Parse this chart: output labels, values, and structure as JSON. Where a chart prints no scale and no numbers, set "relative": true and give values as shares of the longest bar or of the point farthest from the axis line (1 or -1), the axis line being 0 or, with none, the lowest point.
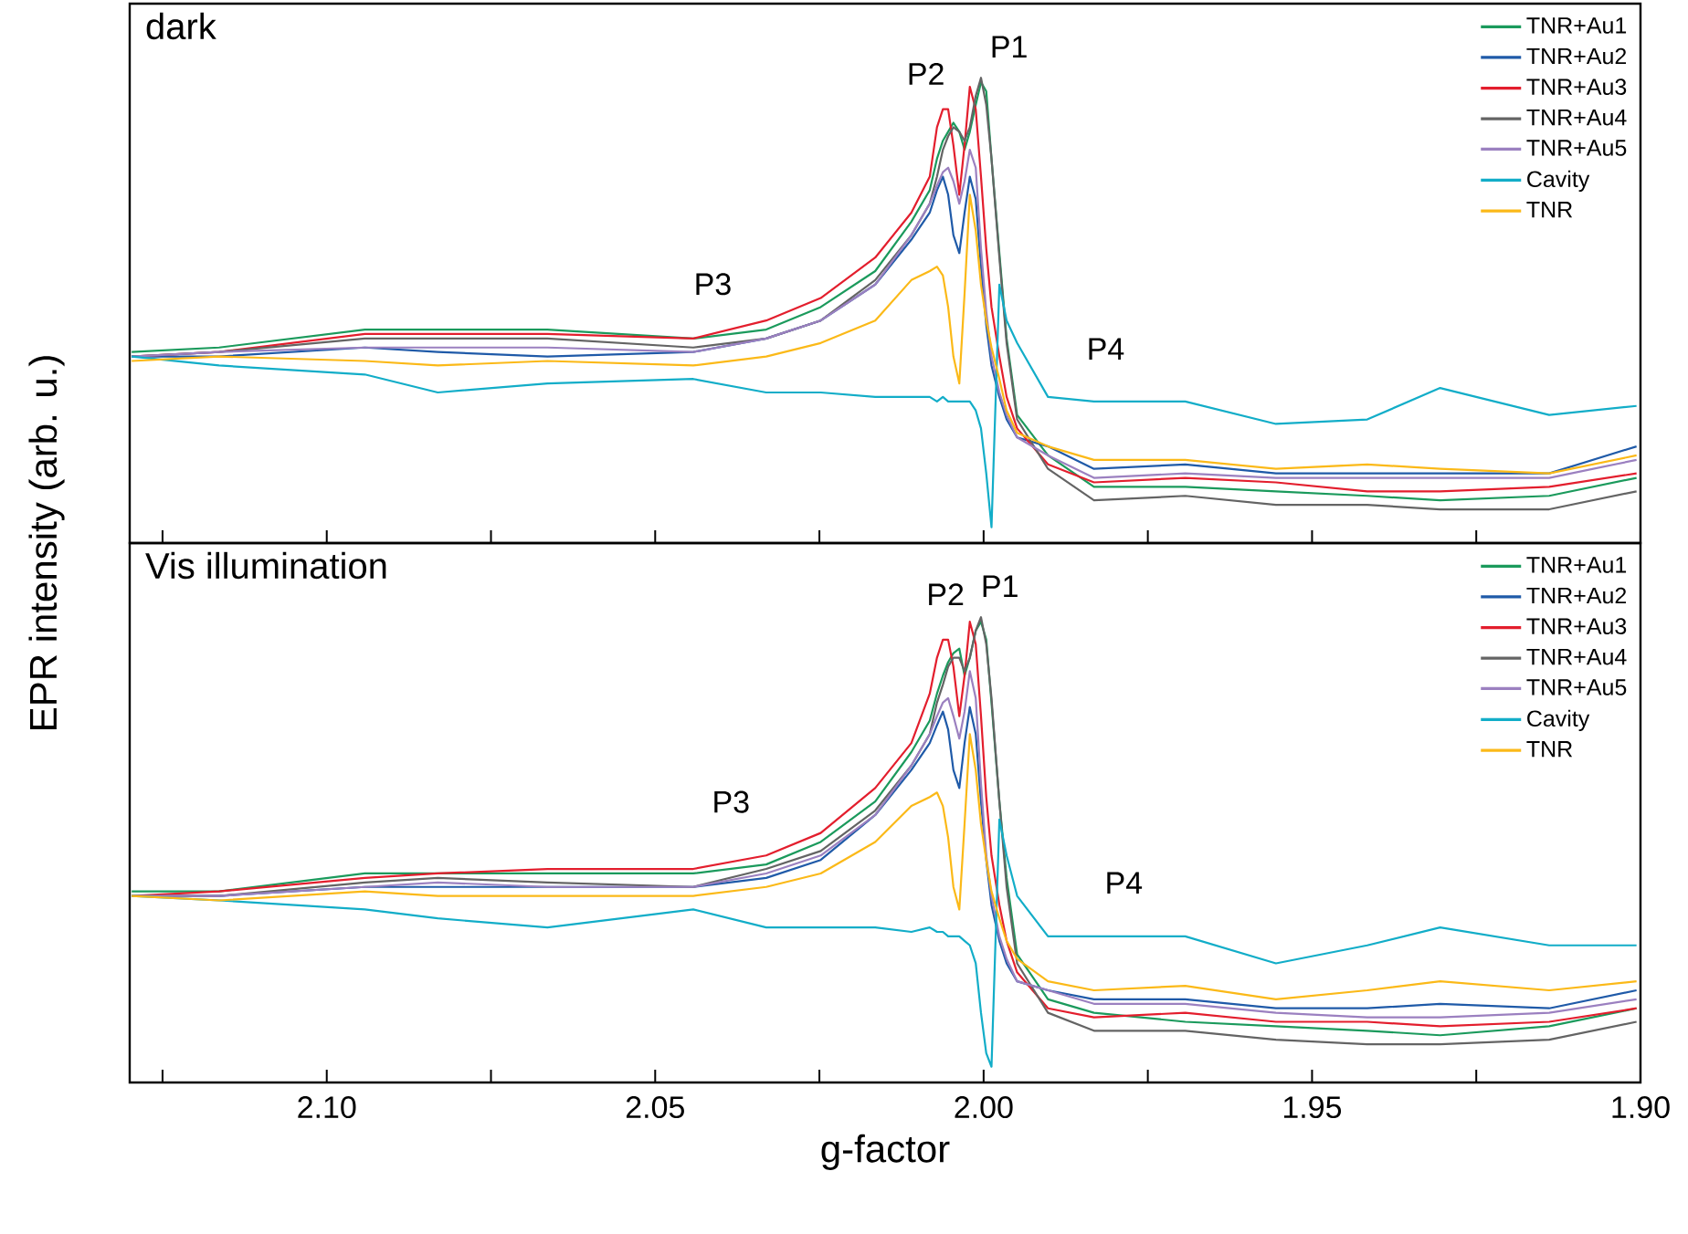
{
  "chart_data": [
    {
      "type": "line",
      "title": "dark",
      "relative": true,
      "legend": "top right",
      "tick_labels": false,
      "xlim": [
        2.13,
        1.9
      ],
      "xticks": [
        2.125,
        2.1,
        2.075,
        2.05,
        2.025,
        2.0,
        1.975,
        1.95,
        1.925,
        1.9
      ],
      "x": [
        2.1297,
        2.1164,
        2.0942,
        2.0831,
        2.0664,
        2.0442,
        2.0331,
        2.0248,
        2.0165,
        2.011,
        2.0082,
        2.0071,
        2.0062,
        2.0054,
        2.0046,
        2.0037,
        2.0029,
        2.0021,
        2.0012,
        2.0004,
        1.9996,
        1.9988,
        1.9976,
        1.9965,
        1.9949,
        1.9902,
        1.9832,
        1.9693,
        1.9555,
        1.9416,
        1.9305,
        1.9139,
        1.9006
      ],
      "series": [
        {
          "name": "TNR+Au1",
          "color": "#1b9a5c",
          "values": [
            0.39,
            0.4,
            0.44,
            0.44,
            0.44,
            0.42,
            0.44,
            0.49,
            0.57,
            0.68,
            0.75,
            0.82,
            0.86,
            0.88,
            0.9,
            0.88,
            0.84,
            0.88,
            0.94,
            0.99,
            0.97,
            0.82,
            0.61,
            0.42,
            0.25,
            0.16,
            0.09,
            0.09,
            0.08,
            0.07,
            0.06,
            0.07,
            0.11
          ]
        },
        {
          "name": "TNR+Au2",
          "color": "#1f5aa8",
          "values": [
            0.38,
            0.38,
            0.4,
            0.39,
            0.38,
            0.39,
            0.42,
            0.46,
            0.54,
            0.64,
            0.7,
            0.75,
            0.78,
            0.74,
            0.65,
            0.61,
            0.7,
            0.78,
            0.73,
            0.58,
            0.45,
            0.36,
            0.29,
            0.24,
            0.2,
            0.18,
            0.13,
            0.14,
            0.12,
            0.12,
            0.12,
            0.12,
            0.18
          ]
        },
        {
          "name": "TNR+Au3",
          "color": "#e31e2d",
          "values": [
            0.38,
            0.39,
            0.43,
            0.43,
            0.43,
            0.42,
            0.46,
            0.51,
            0.6,
            0.7,
            0.78,
            0.89,
            0.93,
            0.93,
            0.85,
            0.74,
            0.85,
            0.98,
            0.93,
            0.78,
            0.62,
            0.49,
            0.38,
            0.29,
            0.22,
            0.14,
            0.1,
            0.11,
            0.1,
            0.08,
            0.08,
            0.09,
            0.12
          ]
        },
        {
          "name": "TNR+Au4",
          "color": "#646464",
          "values": [
            0.38,
            0.39,
            0.42,
            0.42,
            0.42,
            0.4,
            0.42,
            0.46,
            0.55,
            0.65,
            0.72,
            0.78,
            0.84,
            0.87,
            0.89,
            0.88,
            0.86,
            0.89,
            0.96,
            1.0,
            0.94,
            0.82,
            0.6,
            0.41,
            0.24,
            0.13,
            0.06,
            0.07,
            0.05,
            0.05,
            0.04,
            0.04,
            0.08
          ]
        },
        {
          "name": "TNR+Au5",
          "color": "#9b80c0",
          "values": [
            0.38,
            0.39,
            0.4,
            0.4,
            0.4,
            0.39,
            0.42,
            0.46,
            0.54,
            0.65,
            0.72,
            0.76,
            0.79,
            0.8,
            0.77,
            0.72,
            0.77,
            0.84,
            0.8,
            0.62,
            0.48,
            0.38,
            0.3,
            0.25,
            0.2,
            0.16,
            0.11,
            0.12,
            0.11,
            0.11,
            0.11,
            0.11,
            0.15
          ]
        },
        {
          "name": "Cavity",
          "color": "#12adc8",
          "values": [
            0.38,
            0.36,
            0.34,
            0.3,
            0.32,
            0.33,
            0.3,
            0.3,
            0.29,
            0.29,
            0.29,
            0.28,
            0.29,
            0.28,
            0.28,
            0.28,
            0.28,
            0.28,
            0.26,
            0.22,
            0.12,
            0.0,
            0.54,
            0.46,
            0.41,
            0.29,
            0.28,
            0.28,
            0.23,
            0.24,
            0.31,
            0.25,
            0.27
          ]
        },
        {
          "name": "TNR",
          "color": "#fbb918",
          "values": [
            0.37,
            0.38,
            0.37,
            0.36,
            0.37,
            0.36,
            0.38,
            0.41,
            0.46,
            0.55,
            0.57,
            0.58,
            0.56,
            0.49,
            0.38,
            0.32,
            0.52,
            0.74,
            0.66,
            0.54,
            0.46,
            0.4,
            0.33,
            0.26,
            0.21,
            0.18,
            0.15,
            0.15,
            0.13,
            0.14,
            0.13,
            0.12,
            0.16
          ]
        }
      ],
      "annotations": [
        "P1",
        "P2",
        "P3",
        "P4"
      ]
    },
    {
      "type": "line",
      "title": "Vis illumination",
      "xlabel": "g-factor",
      "ylabel": "EPR intensity (arb. u.)",
      "relative": true,
      "legend": "top right",
      "tick_labels": "x",
      "xlim": [
        2.13,
        1.9
      ],
      "xticks": [
        {
          "value": 2.125,
          "label": null
        },
        {
          "value": 2.1,
          "label": "2.10"
        },
        {
          "value": 2.075,
          "label": null
        },
        {
          "value": 2.05,
          "label": "2.05"
        },
        {
          "value": 2.025,
          "label": null
        },
        {
          "value": 2.0,
          "label": "2.00"
        },
        {
          "value": 1.975,
          "label": null
        },
        {
          "value": 1.95,
          "label": "1.95"
        },
        {
          "value": 1.925,
          "label": null
        },
        {
          "value": 1.9,
          "label": "1.90"
        }
      ],
      "x": [
        2.1297,
        2.1164,
        2.0942,
        2.0831,
        2.0664,
        2.0442,
        2.0331,
        2.0248,
        2.0165,
        2.011,
        2.0082,
        2.0071,
        2.0062,
        2.0054,
        2.0046,
        2.0037,
        2.0029,
        2.0021,
        2.0012,
        2.0004,
        1.9996,
        1.9988,
        1.9976,
        1.9965,
        1.9949,
        1.9902,
        1.9832,
        1.9693,
        1.9555,
        1.9416,
        1.9305,
        1.9139,
        1.9006
      ],
      "series": [
        {
          "name": "TNR+Au1",
          "color": "#1b9a5c",
          "values": [
            0.39,
            0.39,
            0.43,
            0.43,
            0.43,
            0.43,
            0.45,
            0.5,
            0.59,
            0.7,
            0.77,
            0.83,
            0.87,
            0.9,
            0.92,
            0.93,
            0.87,
            0.91,
            0.97,
            0.99,
            0.95,
            0.81,
            0.59,
            0.42,
            0.25,
            0.15,
            0.12,
            0.1,
            0.09,
            0.08,
            0.07,
            0.09,
            0.13
          ]
        },
        {
          "name": "TNR+Au2",
          "color": "#1f5aa8",
          "values": [
            0.38,
            0.38,
            0.4,
            0.4,
            0.4,
            0.4,
            0.42,
            0.46,
            0.56,
            0.66,
            0.72,
            0.76,
            0.79,
            0.75,
            0.66,
            0.62,
            0.72,
            0.8,
            0.74,
            0.59,
            0.46,
            0.36,
            0.28,
            0.23,
            0.19,
            0.17,
            0.15,
            0.15,
            0.13,
            0.13,
            0.14,
            0.13,
            0.17
          ]
        },
        {
          "name": "TNR+Au3",
          "color": "#e31e2d",
          "values": [
            0.38,
            0.39,
            0.42,
            0.43,
            0.44,
            0.44,
            0.47,
            0.52,
            0.62,
            0.72,
            0.83,
            0.91,
            0.95,
            0.95,
            0.89,
            0.78,
            0.87,
            0.99,
            0.94,
            0.78,
            0.6,
            0.47,
            0.36,
            0.28,
            0.21,
            0.13,
            0.11,
            0.12,
            0.1,
            0.1,
            0.09,
            0.1,
            0.13
          ]
        },
        {
          "name": "TNR+Au4",
          "color": "#646464",
          "values": [
            0.38,
            0.38,
            0.41,
            0.42,
            0.41,
            0.4,
            0.44,
            0.48,
            0.57,
            0.67,
            0.74,
            0.81,
            0.85,
            0.89,
            0.91,
            0.91,
            0.88,
            0.91,
            0.97,
            1.0,
            0.94,
            0.82,
            0.59,
            0.4,
            0.23,
            0.12,
            0.08,
            0.08,
            0.06,
            0.05,
            0.05,
            0.06,
            0.1
          ]
        },
        {
          "name": "TNR+Au5",
          "color": "#9b80c0",
          "values": [
            0.38,
            0.38,
            0.4,
            0.41,
            0.4,
            0.4,
            0.43,
            0.47,
            0.56,
            0.67,
            0.74,
            0.78,
            0.81,
            0.82,
            0.78,
            0.73,
            0.79,
            0.88,
            0.82,
            0.63,
            0.47,
            0.38,
            0.29,
            0.24,
            0.19,
            0.17,
            0.14,
            0.14,
            0.12,
            0.11,
            0.11,
            0.12,
            0.15
          ]
        },
        {
          "name": "Cavity",
          "color": "#12adc8",
          "values": [
            0.38,
            0.37,
            0.35,
            0.33,
            0.31,
            0.35,
            0.31,
            0.31,
            0.31,
            0.3,
            0.31,
            0.3,
            0.3,
            0.29,
            0.29,
            0.29,
            0.28,
            0.27,
            0.23,
            0.12,
            0.03,
            0.0,
            0.55,
            0.47,
            0.38,
            0.29,
            0.29,
            0.29,
            0.23,
            0.27,
            0.31,
            0.27,
            0.27
          ]
        },
        {
          "name": "TNR",
          "color": "#fbb918",
          "values": [
            0.38,
            0.37,
            0.39,
            0.38,
            0.38,
            0.38,
            0.4,
            0.43,
            0.5,
            0.58,
            0.6,
            0.61,
            0.58,
            0.51,
            0.4,
            0.35,
            0.54,
            0.74,
            0.66,
            0.54,
            0.46,
            0.39,
            0.33,
            0.28,
            0.24,
            0.19,
            0.17,
            0.18,
            0.15,
            0.17,
            0.19,
            0.17,
            0.19
          ]
        }
      ],
      "annotations": [
        "P1",
        "P2",
        "P3",
        "P4"
      ]
    }
  ]
}
